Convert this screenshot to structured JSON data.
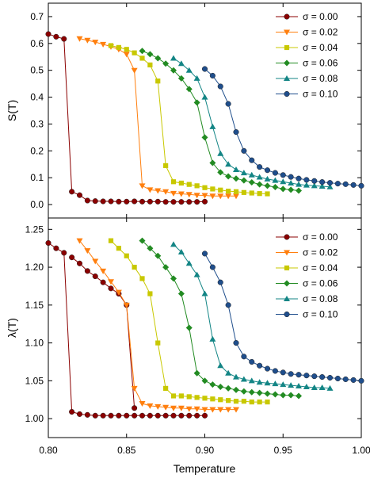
{
  "figure": {
    "xlabel": "Temperature"
  },
  "chart_data": [
    {
      "type": "line",
      "ylabel": "S(T)",
      "xlim": [
        0.8,
        1.0
      ],
      "ylim": [
        -0.05,
        0.75
      ],
      "xticks": [
        "0.80",
        "0.85",
        "0.90",
        "0.95",
        "1.00"
      ],
      "yticks": [
        "0.0",
        "0.1",
        "0.2",
        "0.3",
        "0.4",
        "0.5",
        "0.6",
        "0.7"
      ],
      "legend_position": "top-right",
      "series": [
        {
          "name": "σ = 0.00",
          "color": "#8b0000",
          "marker": "circle",
          "x": [
            0.8,
            0.805,
            0.81,
            0.815,
            0.82,
            0.825,
            0.83,
            0.835,
            0.84,
            0.845,
            0.85,
            0.855,
            0.86,
            0.865,
            0.87,
            0.875,
            0.88,
            0.885,
            0.89,
            0.895,
            0.9
          ],
          "y": [
            0.635,
            0.625,
            0.617,
            0.048,
            0.035,
            0.015,
            0.013,
            0.012,
            0.012,
            0.011,
            0.011,
            0.012,
            0.011,
            0.011,
            0.011,
            0.01,
            0.01,
            0.01,
            0.01,
            0.01,
            0.011
          ]
        },
        {
          "name": "σ = 0.02",
          "color": "#ff7f0e",
          "marker": "triangle-down",
          "x": [
            0.82,
            0.825,
            0.83,
            0.835,
            0.84,
            0.845,
            0.85,
            0.855,
            0.86,
            0.865,
            0.87,
            0.875,
            0.88,
            0.885,
            0.89,
            0.895,
            0.9,
            0.905,
            0.91,
            0.915,
            0.92
          ],
          "y": [
            0.618,
            0.612,
            0.605,
            0.597,
            0.588,
            0.578,
            0.56,
            0.5,
            0.07,
            0.055,
            0.052,
            0.048,
            0.042,
            0.04,
            0.038,
            0.035,
            0.034,
            0.032,
            0.032,
            0.032,
            0.032
          ]
        },
        {
          "name": "σ = 0.04",
          "color": "#c8c800",
          "marker": "square",
          "x": [
            0.84,
            0.845,
            0.85,
            0.855,
            0.86,
            0.865,
            0.87,
            0.875,
            0.88,
            0.885,
            0.89,
            0.895,
            0.9,
            0.905,
            0.91,
            0.915,
            0.92,
            0.925,
            0.93,
            0.935,
            0.94
          ],
          "y": [
            0.592,
            0.585,
            0.578,
            0.565,
            0.545,
            0.52,
            0.46,
            0.145,
            0.085,
            0.08,
            0.075,
            0.07,
            0.063,
            0.058,
            0.054,
            0.05,
            0.048,
            0.045,
            0.043,
            0.041,
            0.04
          ]
        },
        {
          "name": "σ = 0.06",
          "color": "#228b22",
          "marker": "diamond",
          "x": [
            0.86,
            0.865,
            0.87,
            0.875,
            0.88,
            0.885,
            0.89,
            0.895,
            0.9,
            0.905,
            0.91,
            0.915,
            0.92,
            0.925,
            0.93,
            0.935,
            0.94,
            0.945,
            0.95,
            0.955,
            0.96
          ],
          "y": [
            0.572,
            0.56,
            0.545,
            0.525,
            0.5,
            0.47,
            0.43,
            0.38,
            0.25,
            0.155,
            0.12,
            0.105,
            0.097,
            0.09,
            0.083,
            0.075,
            0.07,
            0.065,
            0.058,
            0.055,
            0.052
          ]
        },
        {
          "name": "σ = 0.08",
          "color": "#138585",
          "marker": "triangle-up",
          "x": [
            0.88,
            0.885,
            0.89,
            0.895,
            0.9,
            0.905,
            0.91,
            0.915,
            0.92,
            0.925,
            0.93,
            0.935,
            0.94,
            0.945,
            0.95,
            0.955,
            0.96,
            0.965,
            0.97,
            0.975,
            0.98
          ],
          "y": [
            0.545,
            0.525,
            0.5,
            0.47,
            0.4,
            0.29,
            0.19,
            0.15,
            0.13,
            0.118,
            0.11,
            0.102,
            0.095,
            0.09,
            0.085,
            0.08,
            0.075,
            0.072,
            0.07,
            0.068,
            0.066
          ]
        },
        {
          "name": "σ = 0.10",
          "color": "#1f4e8c",
          "marker": "circle",
          "x": [
            0.9,
            0.905,
            0.91,
            0.915,
            0.92,
            0.925,
            0.93,
            0.935,
            0.94,
            0.945,
            0.95,
            0.955,
            0.96,
            0.965,
            0.97,
            0.975,
            0.98,
            0.985,
            0.99,
            0.995,
            1.0
          ],
          "y": [
            0.505,
            0.48,
            0.44,
            0.375,
            0.27,
            0.2,
            0.165,
            0.14,
            0.128,
            0.118,
            0.11,
            0.103,
            0.097,
            0.092,
            0.088,
            0.084,
            0.081,
            0.078,
            0.076,
            0.073,
            0.07
          ]
        }
      ]
    },
    {
      "type": "line",
      "ylabel": "λ(T)",
      "xlim": [
        0.8,
        1.0
      ],
      "ylim": [
        0.975,
        1.265
      ],
      "xticks": [
        "0.80",
        "0.85",
        "0.90",
        "0.95",
        "1.00"
      ],
      "yticks": [
        "1.00",
        "1.05",
        "1.10",
        "1.15",
        "1.20",
        "1.25"
      ],
      "legend_position": "top-right",
      "series": [
        {
          "name": "σ = 0.00",
          "color": "#8b0000",
          "marker": "circle",
          "x": [
            0.8,
            0.805,
            0.81,
            0.815,
            0.82,
            0.825,
            0.83,
            0.835,
            0.84,
            0.845,
            0.85,
            0.855,
            0.86,
            0.865,
            0.87,
            0.875,
            0.88,
            0.885,
            0.89,
            0.895,
            0.9
          ],
          "y": [
            1.232,
            1.225,
            1.219,
            1.009,
            1.006,
            1.005,
            1.004,
            1.004,
            1.004,
            1.004,
            1.004,
            1.004,
            1.004,
            1.004,
            1.004,
            1.004,
            1.004,
            1.004,
            1.004,
            1.004,
            1.004
          ]
        },
        {
          "name": "σ = 0.00",
          "color": "#8b0000",
          "marker": "circle",
          "x": [
            0.815,
            0.82,
            0.825,
            0.83,
            0.835,
            0.84,
            0.845,
            0.85,
            0.855
          ],
          "y": [
            1.213,
            1.205,
            1.195,
            1.188,
            1.18,
            1.172,
            1.165,
            1.15,
            1.014
          ]
        },
        {
          "name": "σ = 0.02",
          "color": "#ff7f0e",
          "marker": "triangle-down",
          "x": [
            0.82,
            0.825,
            0.83,
            0.835,
            0.84,
            0.845,
            0.85,
            0.855,
            0.86,
            0.865,
            0.87,
            0.875,
            0.88,
            0.885,
            0.89,
            0.895,
            0.9,
            0.905,
            0.91,
            0.915,
            0.92
          ],
          "y": [
            1.235,
            1.222,
            1.208,
            1.195,
            1.181,
            1.167,
            1.15,
            1.04,
            1.02,
            1.017,
            1.016,
            1.015,
            1.014,
            1.014,
            1.013,
            1.013,
            1.012,
            1.012,
            1.012,
            1.012,
            1.012
          ]
        },
        {
          "name": "σ = 0.04",
          "color": "#c8c800",
          "marker": "square",
          "x": [
            0.84,
            0.845,
            0.85,
            0.855,
            0.86,
            0.865,
            0.87,
            0.875,
            0.88,
            0.885,
            0.89,
            0.895,
            0.9,
            0.905,
            0.91,
            0.915,
            0.92,
            0.925,
            0.93,
            0.935,
            0.94
          ],
          "y": [
            1.235,
            1.225,
            1.215,
            1.2,
            1.185,
            1.165,
            1.1,
            1.04,
            1.03,
            1.03,
            1.029,
            1.028,
            1.027,
            1.026,
            1.025,
            1.024,
            1.023,
            1.023,
            1.022,
            1.022,
            1.022
          ]
        },
        {
          "name": "σ = 0.06",
          "color": "#228b22",
          "marker": "diamond",
          "x": [
            0.86,
            0.865,
            0.87,
            0.875,
            0.88,
            0.885,
            0.89,
            0.895,
            0.9,
            0.905,
            0.91,
            0.915,
            0.92,
            0.925,
            0.93,
            0.935,
            0.94,
            0.945,
            0.95,
            0.955,
            0.96
          ],
          "y": [
            1.235,
            1.225,
            1.215,
            1.2,
            1.185,
            1.165,
            1.12,
            1.06,
            1.05,
            1.045,
            1.042,
            1.04,
            1.038,
            1.036,
            1.035,
            1.034,
            1.033,
            1.032,
            1.031,
            1.031,
            1.03
          ]
        },
        {
          "name": "σ = 0.08",
          "color": "#138585",
          "marker": "triangle-up",
          "x": [
            0.88,
            0.885,
            0.89,
            0.895,
            0.9,
            0.905,
            0.91,
            0.915,
            0.92,
            0.925,
            0.93,
            0.935,
            0.94,
            0.945,
            0.95,
            0.955,
            0.96,
            0.965,
            0.97,
            0.975,
            0.98
          ],
          "y": [
            1.23,
            1.22,
            1.205,
            1.19,
            1.165,
            1.105,
            1.07,
            1.06,
            1.055,
            1.052,
            1.05,
            1.048,
            1.047,
            1.046,
            1.045,
            1.044,
            1.043,
            1.042,
            1.041,
            1.041,
            1.04
          ]
        },
        {
          "name": "σ = 0.10",
          "color": "#1f4e8c",
          "marker": "circle",
          "x": [
            0.9,
            0.905,
            0.91,
            0.915,
            0.92,
            0.925,
            0.93,
            0.935,
            0.94,
            0.945,
            0.95,
            0.955,
            0.96,
            0.965,
            0.97,
            0.975,
            0.98,
            0.985,
            0.99,
            0.995,
            1.0
          ],
          "y": [
            1.218,
            1.2,
            1.18,
            1.15,
            1.1,
            1.082,
            1.075,
            1.07,
            1.066,
            1.063,
            1.061,
            1.059,
            1.058,
            1.057,
            1.056,
            1.055,
            1.054,
            1.053,
            1.052,
            1.051,
            1.05
          ]
        }
      ]
    }
  ]
}
